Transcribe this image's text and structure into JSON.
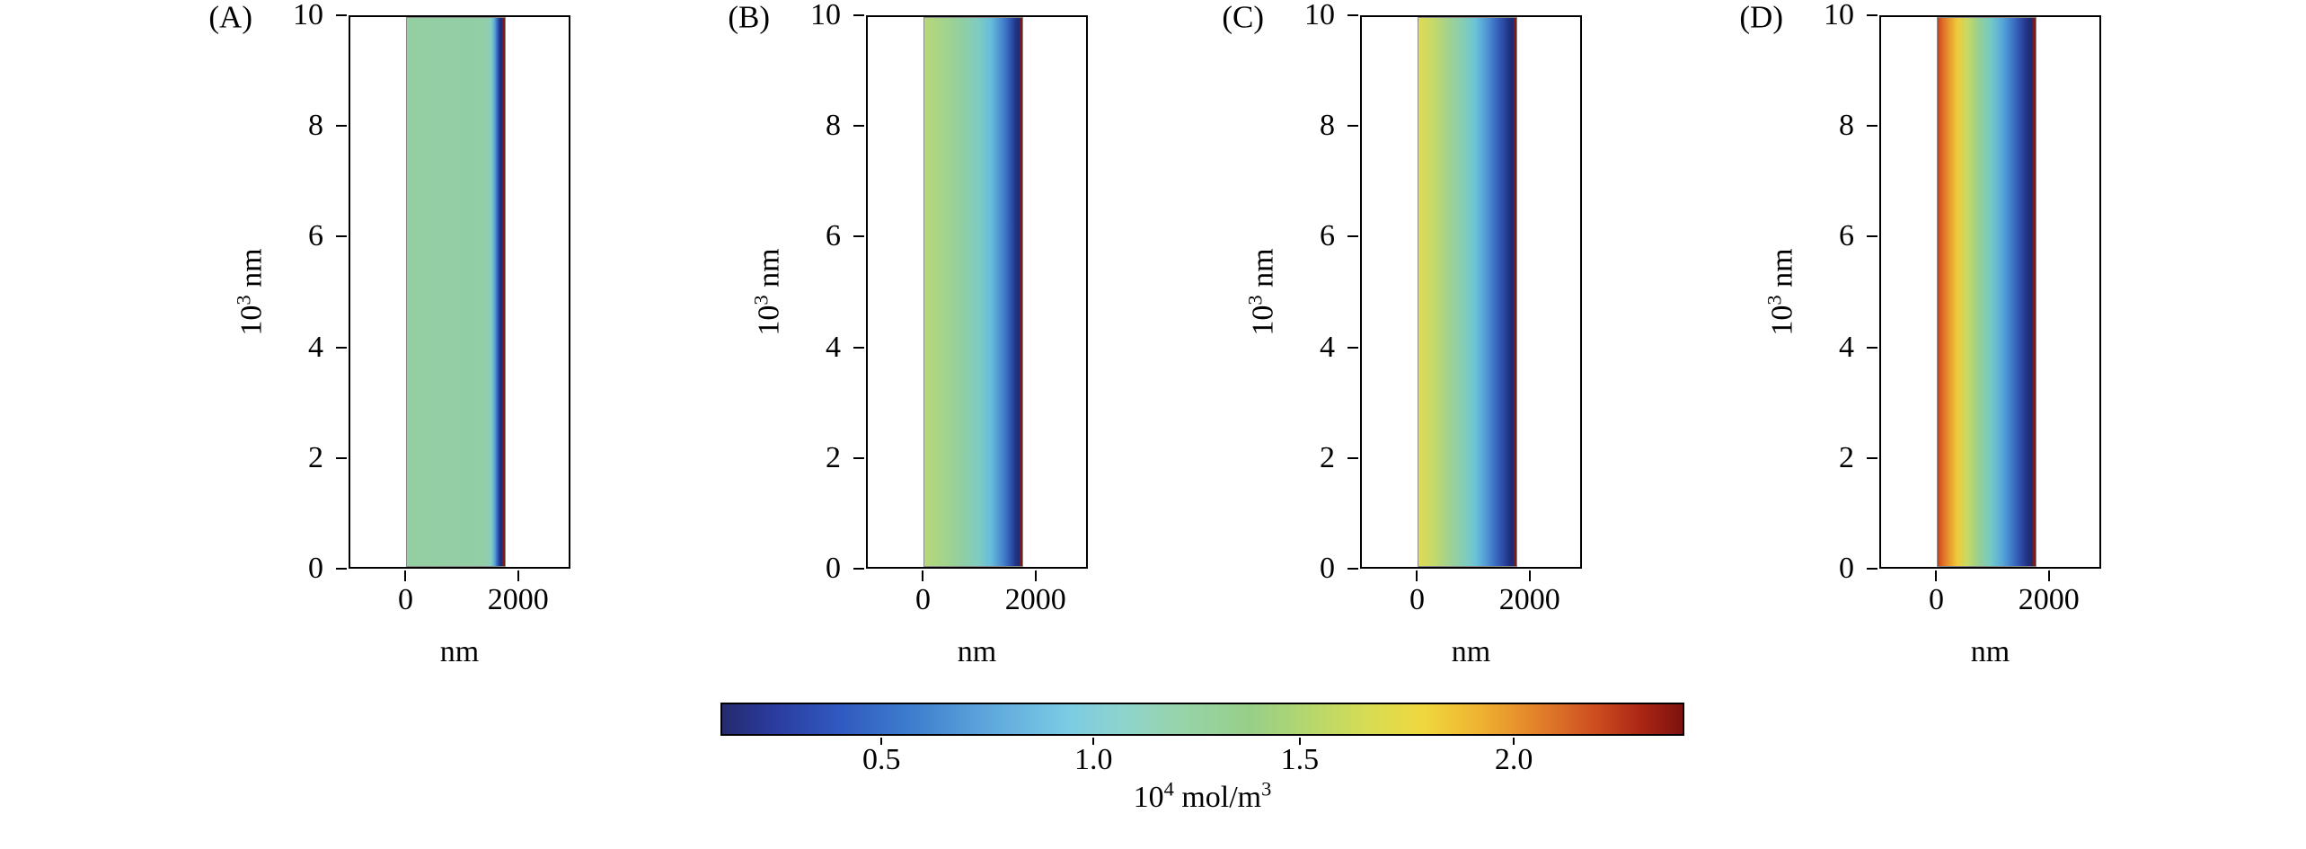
{
  "figure": {
    "background": "#ffffff",
    "panels": [
      {
        "label": "(A)",
        "xlabel": "nm",
        "ylabel": {
          "prefix": "10",
          "sup": "3",
          "suffix": " nm"
        },
        "yticks": [
          {
            "value": "10",
            "pos": 0
          },
          {
            "value": "8",
            "pos": 20
          },
          {
            "value": "6",
            "pos": 40
          },
          {
            "value": "4",
            "pos": 60
          },
          {
            "value": "2",
            "pos": 80
          },
          {
            "value": "0",
            "pos": 100
          }
        ],
        "xticks": [
          {
            "value": "0",
            "pos": 25.7
          },
          {
            "value": "2000",
            "pos": 76.4
          }
        ],
        "strip_gradient": [
          {
            "p": "0%",
            "c": "#94CFA2"
          },
          {
            "p": "80%",
            "c": "#92CEA6"
          },
          {
            "p": "86%",
            "c": "#84CFC2"
          },
          {
            "p": "89.5%",
            "c": "#5CA8D8"
          },
          {
            "p": "92%",
            "c": "#3B6AC2"
          },
          {
            "p": "94%",
            "c": "#27429C"
          },
          {
            "p": "95.5%",
            "c": "#1F2E78"
          },
          {
            "p": "97%",
            "c": "#1F2E78"
          },
          {
            "p": "97.6%",
            "c": "#8A1510"
          },
          {
            "p": "100%",
            "c": "#8A1510"
          }
        ]
      },
      {
        "label": "(B)",
        "xlabel": "nm",
        "ylabel": {
          "prefix": "10",
          "sup": "3",
          "suffix": " nm"
        },
        "yticks": [
          {
            "value": "10",
            "pos": 0
          },
          {
            "value": "8",
            "pos": 20
          },
          {
            "value": "6",
            "pos": 40
          },
          {
            "value": "4",
            "pos": 60
          },
          {
            "value": "2",
            "pos": 80
          },
          {
            "value": "0",
            "pos": 100
          }
        ],
        "xticks": [
          {
            "value": "0",
            "pos": 25.7
          },
          {
            "value": "2000",
            "pos": 76.4
          }
        ],
        "strip_gradient": [
          {
            "p": "0%",
            "c": "#B7D779"
          },
          {
            "p": "20%",
            "c": "#A4D38B"
          },
          {
            "p": "40%",
            "c": "#8FCEA5"
          },
          {
            "p": "55%",
            "c": "#7FCCC2"
          },
          {
            "p": "68%",
            "c": "#66BCDC"
          },
          {
            "p": "80%",
            "c": "#4585CE"
          },
          {
            "p": "88%",
            "c": "#2F55B2"
          },
          {
            "p": "93%",
            "c": "#223786"
          },
          {
            "p": "95.5%",
            "c": "#1F2E78"
          },
          {
            "p": "97%",
            "c": "#1F2E78"
          },
          {
            "p": "97.6%",
            "c": "#8A1510"
          },
          {
            "p": "100%",
            "c": "#8A1510"
          }
        ]
      },
      {
        "label": "(C)",
        "xlabel": "nm",
        "ylabel": {
          "prefix": "10",
          "sup": "3",
          "suffix": " nm"
        },
        "yticks": [
          {
            "value": "10",
            "pos": 0
          },
          {
            "value": "8",
            "pos": 20
          },
          {
            "value": "6",
            "pos": 40
          },
          {
            "value": "4",
            "pos": 60
          },
          {
            "value": "2",
            "pos": 80
          },
          {
            "value": "0",
            "pos": 100
          }
        ],
        "xticks": [
          {
            "value": "0",
            "pos": 25.7
          },
          {
            "value": "2000",
            "pos": 76.4
          }
        ],
        "strip_gradient": [
          {
            "p": "0%",
            "c": "#E0DB52"
          },
          {
            "p": "15%",
            "c": "#C6D969"
          },
          {
            "p": "30%",
            "c": "#A3D28D"
          },
          {
            "p": "45%",
            "c": "#86CEB4"
          },
          {
            "p": "58%",
            "c": "#6CC4D8"
          },
          {
            "p": "70%",
            "c": "#4F95D4"
          },
          {
            "p": "80%",
            "c": "#3865BE"
          },
          {
            "p": "88%",
            "c": "#27459E"
          },
          {
            "p": "93%",
            "c": "#203080"
          },
          {
            "p": "95.5%",
            "c": "#1E2C74"
          },
          {
            "p": "97%",
            "c": "#1E2C74"
          },
          {
            "p": "97.6%",
            "c": "#8A1510"
          },
          {
            "p": "100%",
            "c": "#8A1510"
          }
        ]
      },
      {
        "label": "(D)",
        "xlabel": "nm",
        "ylabel": {
          "prefix": "10",
          "sup": "3",
          "suffix": " nm"
        },
        "yticks": [
          {
            "value": "10",
            "pos": 0
          },
          {
            "value": "8",
            "pos": 20
          },
          {
            "value": "6",
            "pos": 40
          },
          {
            "value": "4",
            "pos": 60
          },
          {
            "value": "2",
            "pos": 80
          },
          {
            "value": "0",
            "pos": 100
          }
        ],
        "xticks": [
          {
            "value": "0",
            "pos": 25.7
          },
          {
            "value": "2000",
            "pos": 76.4
          }
        ],
        "strip_gradient": [
          {
            "p": "0%",
            "c": "#C63D1C"
          },
          {
            "p": "4%",
            "c": "#DA6524"
          },
          {
            "p": "12%",
            "c": "#E9992E"
          },
          {
            "p": "20%",
            "c": "#EECB3A"
          },
          {
            "p": "30%",
            "c": "#C8D962"
          },
          {
            "p": "42%",
            "c": "#96CF92"
          },
          {
            "p": "54%",
            "c": "#74CBC6"
          },
          {
            "p": "66%",
            "c": "#57A8DA"
          },
          {
            "p": "76%",
            "c": "#3F78C8"
          },
          {
            "p": "85%",
            "c": "#2C4BA6"
          },
          {
            "p": "92%",
            "c": "#20307E"
          },
          {
            "p": "96.5%",
            "c": "#1C2A70"
          },
          {
            "p": "97.2%",
            "c": "#8A1510"
          },
          {
            "p": "100%",
            "c": "#8A1510"
          }
        ]
      }
    ],
    "colorbar": {
      "ticks": [
        {
          "value": "0.5",
          "pos": 16.7
        },
        {
          "value": "1.0",
          "pos": 38.7
        },
        {
          "value": "1.5",
          "pos": 60.1
        },
        {
          "value": "2.0",
          "pos": 82.3
        }
      ],
      "label": {
        "prefix": "10",
        "sup": "4",
        "mid": " mol/m",
        "sup2": "3"
      },
      "gradient": [
        {
          "p": "0%",
          "c": "#262A6E"
        },
        {
          "p": "5%",
          "c": "#2A3A9C"
        },
        {
          "p": "12%",
          "c": "#3058C0"
        },
        {
          "p": "20%",
          "c": "#3E7FCD"
        },
        {
          "p": "28%",
          "c": "#5FA9DC"
        },
        {
          "p": "36%",
          "c": "#7CCBE4"
        },
        {
          "p": "42%",
          "c": "#8FD4CC"
        },
        {
          "p": "48%",
          "c": "#97D4A8"
        },
        {
          "p": "55%",
          "c": "#97CF88"
        },
        {
          "p": "61%",
          "c": "#B4D76E"
        },
        {
          "p": "67%",
          "c": "#D6DC55"
        },
        {
          "p": "73%",
          "c": "#EFD83E"
        },
        {
          "p": "79%",
          "c": "#EFB231"
        },
        {
          "p": "85%",
          "c": "#E2802A"
        },
        {
          "p": "91%",
          "c": "#CC4D20"
        },
        {
          "p": "96%",
          "c": "#A82414"
        },
        {
          "p": "100%",
          "c": "#7C120E"
        }
      ]
    }
  },
  "chart_data": [
    {
      "type": "heatmap",
      "panel": "A",
      "xlabel": "nm",
      "ylabel": "10^3 nm",
      "xticks": [
        0,
        2000
      ],
      "yticks": [
        0,
        2,
        4,
        6,
        8,
        10
      ],
      "x_range_nm": [
        0,
        1800
      ],
      "y_range_1e3_nm": [
        0,
        10
      ],
      "uniform_in_y": true,
      "profile_x_nm": [
        0,
        300,
        600,
        900,
        1200,
        1450,
        1560,
        1650,
        1720,
        1760,
        1800
      ],
      "profile_conc_1e4_mol_m3": [
        1.05,
        1.05,
        1.05,
        1.05,
        1.05,
        1.02,
        0.95,
        0.7,
        0.4,
        0.22,
        2.3
      ]
    },
    {
      "type": "heatmap",
      "panel": "B",
      "xlabel": "nm",
      "ylabel": "10^3 nm",
      "xticks": [
        0,
        2000
      ],
      "yticks": [
        0,
        2,
        4,
        6,
        8,
        10
      ],
      "x_range_nm": [
        0,
        1800
      ],
      "y_range_1e3_nm": [
        0,
        10
      ],
      "uniform_in_y": true,
      "profile_x_nm": [
        0,
        300,
        600,
        900,
        1200,
        1450,
        1560,
        1650,
        1720,
        1760,
        1800
      ],
      "profile_conc_1e4_mol_m3": [
        1.32,
        1.28,
        1.22,
        1.13,
        1.02,
        0.9,
        0.75,
        0.55,
        0.35,
        0.22,
        2.3
      ]
    },
    {
      "type": "heatmap",
      "panel": "C",
      "xlabel": "nm",
      "ylabel": "10^3 nm",
      "xticks": [
        0,
        2000
      ],
      "yticks": [
        0,
        2,
        4,
        6,
        8,
        10
      ],
      "x_range_nm": [
        0,
        1800
      ],
      "y_range_1e3_nm": [
        0,
        10
      ],
      "uniform_in_y": true,
      "profile_x_nm": [
        0,
        300,
        600,
        900,
        1200,
        1450,
        1560,
        1650,
        1720,
        1760,
        1800
      ],
      "profile_conc_1e4_mol_m3": [
        1.52,
        1.45,
        1.33,
        1.18,
        1.0,
        0.85,
        0.68,
        0.5,
        0.3,
        0.2,
        2.3
      ]
    },
    {
      "type": "heatmap",
      "panel": "D",
      "xlabel": "nm",
      "ylabel": "10^3 nm",
      "xticks": [
        0,
        2000
      ],
      "yticks": [
        0,
        2,
        4,
        6,
        8,
        10
      ],
      "x_range_nm": [
        0,
        1800
      ],
      "y_range_1e3_nm": [
        0,
        10
      ],
      "uniform_in_y": true,
      "profile_x_nm": [
        0,
        300,
        600,
        900,
        1200,
        1450,
        1560,
        1650,
        1720,
        1760,
        1800
      ],
      "profile_conc_1e4_mol_m3": [
        1.95,
        1.85,
        1.68,
        1.45,
        1.2,
        0.95,
        0.75,
        0.55,
        0.32,
        0.2,
        2.3
      ]
    },
    {
      "type": "colorbar",
      "label": "10^4 mol/m^3",
      "range": [
        0.12,
        2.42
      ],
      "ticks": [
        0.5,
        1.0,
        1.5,
        2.0
      ],
      "colormap": "jet",
      "orientation": "horizontal"
    }
  ]
}
